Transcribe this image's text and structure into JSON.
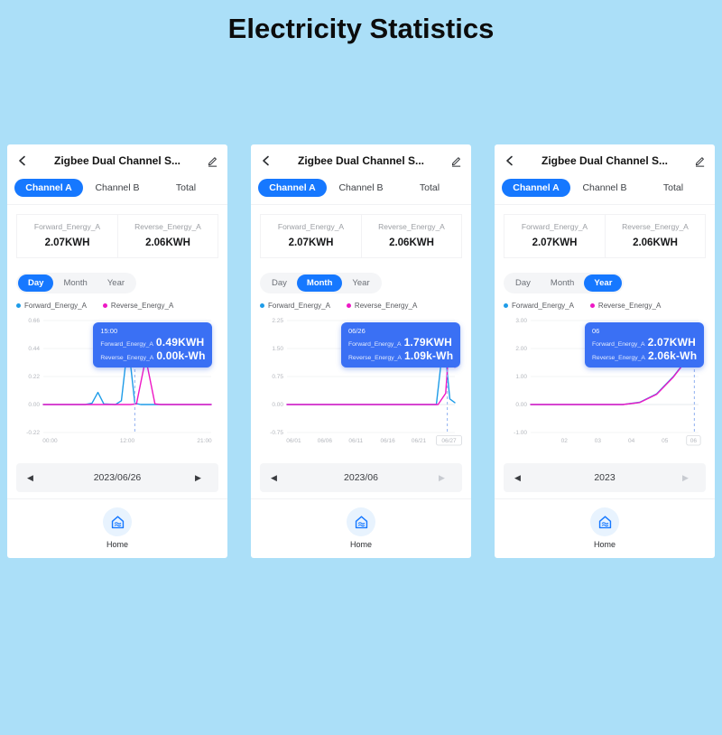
{
  "page": {
    "title": "Electricity Statistics"
  },
  "icons": {
    "prev_arrow": "◀",
    "next_arrow": "▶"
  },
  "colors": {
    "background": "#abdff8",
    "accent": "#1678ff",
    "forward_line": "#1e9ce8",
    "reverse_line": "#ee18c5",
    "tooltip_bg": "#3a70f4"
  },
  "phones": [
    {
      "header": {
        "title": "Zigbee Dual Channel S..."
      },
      "channel_tabs": [
        {
          "label": "Channel A",
          "active": true
        },
        {
          "label": "Channel B",
          "active": false
        },
        {
          "label": "Total",
          "active": false
        }
      ],
      "stats": [
        {
          "label": "Forward_Energy_A",
          "value": "2.07KWH"
        },
        {
          "label": "Reverse_Energy_A",
          "value": "2.06KWH"
        }
      ],
      "period_tabs": [
        {
          "label": "Day",
          "active": true
        },
        {
          "label": "Month",
          "active": false
        },
        {
          "label": "Year",
          "active": false
        }
      ],
      "legend": [
        {
          "label": "Forward_Energy_A",
          "color": "#1e9ce8"
        },
        {
          "label": "Reverse_Energy_A",
          "color": "#ee18c5"
        }
      ],
      "tooltip": {
        "title": "15:00",
        "rows": [
          {
            "label": "Forward_Energy_A",
            "value": "0.49KWH"
          },
          {
            "label": "Reverse_Energy_A",
            "value": "0.00k-Wh"
          }
        ]
      },
      "chart_data": {
        "type": "line",
        "ylim": [
          -0.22,
          0.66
        ],
        "yticks": [
          {
            "label": "0.66",
            "value": 0.66
          },
          {
            "label": "0.44",
            "value": 0.44
          },
          {
            "label": "0.22",
            "value": 0.22
          },
          {
            "label": "0.00",
            "value": 0
          },
          {
            "label": "-0.22",
            "value": -0.22
          }
        ],
        "xticks": [
          {
            "label": "00:00",
            "pos": 0.04
          },
          {
            "label": "12:00",
            "pos": 0.5
          },
          {
            "label": "21:00",
            "pos": 0.96
          }
        ],
        "series": [
          {
            "name": "Forward_Energy_A",
            "color": "#1e9ce8",
            "points": [
              [
                0,
                0
              ],
              [
                0.25,
                0
              ],
              [
                0.29,
                0.01
              ],
              [
                0.325,
                0.095
              ],
              [
                0.36,
                0.005
              ],
              [
                0.43,
                0
              ],
              [
                0.465,
                0.03
              ],
              [
                0.505,
                0.49
              ],
              [
                0.545,
                0.01
              ],
              [
                0.58,
                0
              ],
              [
                1,
                0
              ]
            ]
          },
          {
            "name": "Reverse_Energy_A",
            "color": "#ee18c5",
            "points": [
              [
                0,
                0
              ],
              [
                0.52,
                0
              ],
              [
                0.555,
                0.005
              ],
              [
                0.61,
                0.365
              ],
              [
                0.665,
                0.005
              ],
              [
                0.7,
                0
              ],
              [
                1,
                0
              ]
            ]
          }
        ],
        "marker_x": 0.545
      },
      "date_nav": {
        "value": "2023/06/26",
        "prev_enabled": true,
        "next_enabled": true
      },
      "footer": {
        "label": "Home"
      }
    },
    {
      "header": {
        "title": "Zigbee Dual Channel S..."
      },
      "channel_tabs": [
        {
          "label": "Channel A",
          "active": true
        },
        {
          "label": "Channel B",
          "active": false
        },
        {
          "label": "Total",
          "active": false
        }
      ],
      "stats": [
        {
          "label": "Forward_Energy_A",
          "value": "2.07KWH"
        },
        {
          "label": "Reverse_Energy_A",
          "value": "2.06KWH"
        }
      ],
      "period_tabs": [
        {
          "label": "Day",
          "active": false
        },
        {
          "label": "Month",
          "active": true
        },
        {
          "label": "Year",
          "active": false
        }
      ],
      "legend": [
        {
          "label": "Forward_Energy_A",
          "color": "#1e9ce8"
        },
        {
          "label": "Reverse_Energy_A",
          "color": "#ee18c5"
        }
      ],
      "tooltip": {
        "title": "06/26",
        "rows": [
          {
            "label": "Forward_Energy_A",
            "value": "1.79KWH"
          },
          {
            "label": "Reverse_Energy_A",
            "value": "1.09k-Wh"
          }
        ]
      },
      "chart_data": {
        "type": "line",
        "ylim": [
          -0.75,
          2.25
        ],
        "yticks": [
          {
            "label": "2.25",
            "value": 2.25
          },
          {
            "label": "1.50",
            "value": 1.5
          },
          {
            "label": "0.75",
            "value": 0.75
          },
          {
            "label": "0.00",
            "value": 0
          },
          {
            "label": "-0.75",
            "value": -0.75
          }
        ],
        "xticks": [
          {
            "label": "06/01",
            "pos": 0.04
          },
          {
            "label": "06/06",
            "pos": 0.225
          },
          {
            "label": "06/11",
            "pos": 0.41
          },
          {
            "label": "06/16",
            "pos": 0.6
          },
          {
            "label": "06/21",
            "pos": 0.785
          },
          {
            "label": "06/27",
            "pos": 0.965,
            "selected": true
          }
        ],
        "series": [
          {
            "name": "Forward_Energy_A",
            "color": "#1e9ce8",
            "points": [
              [
                0,
                0
              ],
              [
                0.89,
                0
              ],
              [
                0.935,
                1.79
              ],
              [
                0.97,
                0.15
              ],
              [
                1,
                0.05
              ]
            ]
          },
          {
            "name": "Reverse_Energy_A",
            "color": "#ee18c5",
            "points": [
              [
                0,
                0
              ],
              [
                0.9,
                0
              ],
              [
                0.945,
                0.3
              ],
              [
                0.975,
                2.15
              ],
              [
                1,
                1.0
              ]
            ]
          }
        ],
        "marker_x": 0.955
      },
      "date_nav": {
        "value": "2023/06",
        "prev_enabled": true,
        "next_enabled": false
      },
      "footer": {
        "label": "Home"
      }
    },
    {
      "header": {
        "title": "Zigbee Dual Channel S..."
      },
      "channel_tabs": [
        {
          "label": "Channel A",
          "active": true
        },
        {
          "label": "Channel B",
          "active": false
        },
        {
          "label": "Total",
          "active": false
        }
      ],
      "stats": [
        {
          "label": "Forward_Energy_A",
          "value": "2.07KWH"
        },
        {
          "label": "Reverse_Energy_A",
          "value": "2.06KWH"
        }
      ],
      "period_tabs": [
        {
          "label": "Day",
          "active": false
        },
        {
          "label": "Month",
          "active": false
        },
        {
          "label": "Year",
          "active": true
        }
      ],
      "legend": [
        {
          "label": "Forward_Energy_A",
          "color": "#1e9ce8"
        },
        {
          "label": "Reverse_Energy_A",
          "color": "#ee18c5"
        }
      ],
      "tooltip": {
        "title": "06",
        "rows": [
          {
            "label": "Forward_Energy_A",
            "value": "2.07KWH"
          },
          {
            "label": "Reverse_Energy_A",
            "value": "2.06k-Wh"
          }
        ]
      },
      "chart_data": {
        "type": "line",
        "ylim": [
          -1,
          3
        ],
        "yticks": [
          {
            "label": "3.00",
            "value": 3
          },
          {
            "label": "2.00",
            "value": 2
          },
          {
            "label": "1.00",
            "value": 1
          },
          {
            "label": "0.00",
            "value": 0
          },
          {
            "label": "-1.00",
            "value": -1
          }
        ],
        "xticks": [
          {
            "label": "02",
            "pos": 0.2
          },
          {
            "label": "03",
            "pos": 0.4
          },
          {
            "label": "04",
            "pos": 0.6
          },
          {
            "label": "05",
            "pos": 0.8
          },
          {
            "label": "06",
            "pos": 0.97,
            "selected": true
          }
        ],
        "series": [
          {
            "name": "Forward_Energy_A",
            "color": "#1e9ce8",
            "points": [
              [
                0,
                0
              ],
              [
                0.55,
                0
              ],
              [
                0.65,
                0.08
              ],
              [
                0.75,
                0.38
              ],
              [
                0.85,
                1.0
              ],
              [
                0.93,
                1.62
              ],
              [
                1,
                2.07
              ]
            ]
          },
          {
            "name": "Reverse_Energy_A",
            "color": "#ee18c5",
            "points": [
              [
                0,
                0
              ],
              [
                0.55,
                0
              ],
              [
                0.65,
                0.07
              ],
              [
                0.75,
                0.36
              ],
              [
                0.85,
                0.98
              ],
              [
                0.93,
                1.6
              ],
              [
                1,
                2.06
              ]
            ]
          }
        ],
        "marker_x": 0.975
      },
      "date_nav": {
        "value": "2023",
        "prev_enabled": true,
        "next_enabled": false
      },
      "footer": {
        "label": "Home"
      }
    }
  ]
}
